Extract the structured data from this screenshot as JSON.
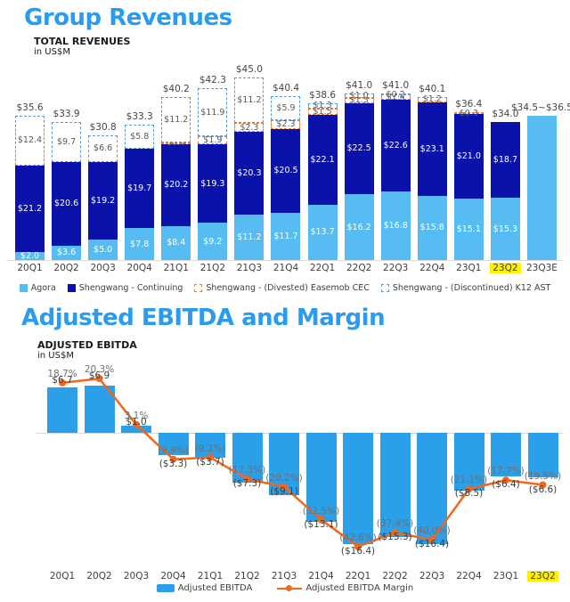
{
  "colors": {
    "title_blue": "#2b9bee",
    "agora_light_blue": "#56bcf1",
    "shengwang_dark_blue": "#0b12a9",
    "easemob_dashed_orange": "#ed7d31",
    "k12_dashed_blue": "#5b9bd5",
    "ebitda_bar_blue": "#2b9fe8",
    "margin_line_orange": "#f0681e",
    "highlight_yellow": "#fff100"
  },
  "revenues": {
    "title": "Group Revenues",
    "subtitle": "TOTAL REVENUES",
    "unit": "in US$M",
    "legend": [
      {
        "label": "Agora",
        "swatch": "agora"
      },
      {
        "label": "Shengwang - Continuing",
        "swatch": "cont"
      },
      {
        "label": "Shengwang - (Divested) Easemob CEC",
        "swatch": "cec"
      },
      {
        "label": "Shengwang - (Discontinued) K12 AST",
        "swatch": "k12"
      }
    ]
  },
  "ebitda": {
    "title": "Adjusted EBITDA and Margin",
    "subtitle": "ADJUSTED EBITDA",
    "unit": "in US$M",
    "legend": [
      {
        "label": "Adjusted EBITDA",
        "swatch": "ebar"
      },
      {
        "label": "Adjusted EBITDA Margin",
        "swatch": "line"
      }
    ]
  },
  "chart_data": [
    {
      "type": "bar",
      "stacked": true,
      "title": "Group Revenues",
      "subtitle": "TOTAL REVENUES",
      "ylabel": "in US$M",
      "ylim": [
        0,
        45
      ],
      "grid": false,
      "legend_position": "bottom",
      "categories": [
        "20Q1",
        "20Q2",
        "20Q3",
        "20Q4",
        "21Q1",
        "21Q2",
        "21Q3",
        "21Q4",
        "22Q1",
        "22Q2",
        "22Q3",
        "22Q4",
        "23Q1",
        "23Q2",
        "23Q3E"
      ],
      "series": [
        {
          "name": "Agora",
          "values": [
            2.0,
            3.6,
            5.0,
            7.8,
            8.4,
            9.2,
            11.2,
            11.7,
            13.7,
            16.2,
            16.8,
            15.8,
            15.1,
            15.3,
            null
          ]
        },
        {
          "name": "Shengwang - Continuing",
          "values": [
            21.2,
            20.6,
            19.2,
            19.7,
            20.2,
            19.3,
            20.3,
            20.5,
            22.1,
            22.5,
            22.6,
            23.1,
            21.0,
            18.7,
            null
          ]
        },
        {
          "name": "Shengwang - (Divested) Easemob CEC",
          "values": [
            null,
            null,
            null,
            null,
            0.4,
            1.9,
            2.3,
            2.3,
            1.5,
            1.3,
            1.4,
            1.2,
            0.3,
            null,
            null
          ]
        },
        {
          "name": "Shengwang - (Discontinued) K12 AST",
          "values": [
            12.4,
            9.7,
            6.6,
            5.8,
            11.2,
            11.9,
            11.2,
            5.9,
            1.3,
            1.0,
            0.2,
            null,
            null,
            null,
            null
          ]
        }
      ],
      "estimate": {
        "category": "23Q3E",
        "value": 35.5,
        "label": "$34.5~$36.5"
      },
      "total_labels": [
        "$35.6",
        "$33.9",
        "$30.8",
        "$33.3",
        "$40.2",
        "$42.3",
        "$45.0",
        "$40.4",
        "$38.6",
        "$41.0",
        "$41.0",
        "$40.1",
        "$36.4",
        "$34.0",
        "$34.5~$36.5"
      ],
      "highlighted_category": "23Q2"
    },
    {
      "type": "bar+line",
      "title": "Adjusted EBITDA and Margin",
      "subtitle": "ADJUSTED EBITDA",
      "ylabel": "in US$M",
      "grid": false,
      "legend_position": "bottom",
      "categories": [
        "20Q1",
        "20Q2",
        "20Q3",
        "20Q4",
        "21Q1",
        "21Q2",
        "21Q3",
        "21Q4",
        "22Q1",
        "22Q2",
        "22Q3",
        "22Q4",
        "23Q1",
        "23Q2"
      ],
      "series": [
        {
          "name": "Adjusted EBITDA",
          "type": "bar",
          "unit": "US$M",
          "values": [
            6.7,
            6.9,
            1.0,
            -3.3,
            -3.7,
            -7.3,
            -9.1,
            -13.1,
            -16.4,
            -15.3,
            -16.4,
            -8.5,
            -6.4,
            -6.6
          ]
        },
        {
          "name": "Adjusted EBITDA Margin",
          "type": "line",
          "unit": "%",
          "values": [
            18.7,
            20.3,
            3.1,
            -9.9,
            -9.2,
            -17.3,
            -20.2,
            -32.5,
            -42.6,
            -37.4,
            -40.0,
            -21.1,
            -17.7,
            -19.5
          ]
        }
      ],
      "highlighted_category": "23Q2"
    }
  ]
}
